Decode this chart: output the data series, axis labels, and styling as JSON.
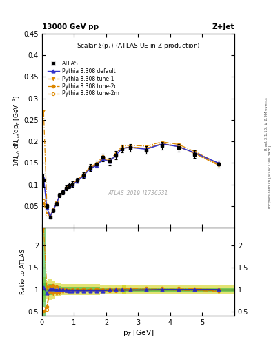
{
  "title_top": "13000 GeV pp",
  "title_right": "Z+Jet",
  "plot_title": "Scalar $\\Sigma$(p$_T$) (ATLAS UE in Z production)",
  "watermark": "ATLAS_2019_I1736531",
  "ylabel_main": "1/N$_{ch}$ dN$_{ch}$/dp$_T$ [GeV$^{-1}$]",
  "ylabel_ratio": "Ratio to ATLAS",
  "xlabel": "p$_T$ [GeV]",
  "right_label": "Rivet 3.1.10, ≥ 2.9M events",
  "arxiv_label": "[arXiv:1306.3436]",
  "mcplots_label": "mcplots.cern.ch",
  "ylim_main": [
    0.0,
    0.45
  ],
  "ylim_ratio": [
    0.4,
    2.4
  ],
  "xlim": [
    0.0,
    6.0
  ],
  "atlas_x": [
    0.05,
    0.15,
    0.25,
    0.35,
    0.45,
    0.55,
    0.65,
    0.75,
    0.85,
    0.95,
    1.1,
    1.3,
    1.5,
    1.7,
    1.9,
    2.1,
    2.3,
    2.5,
    2.75,
    3.25,
    3.75,
    4.25,
    4.75,
    5.5
  ],
  "atlas_y": [
    0.11,
    0.05,
    0.025,
    0.04,
    0.055,
    0.075,
    0.082,
    0.092,
    0.098,
    0.101,
    0.11,
    0.122,
    0.14,
    0.148,
    0.163,
    0.153,
    0.168,
    0.183,
    0.185,
    0.18,
    0.19,
    0.185,
    0.17,
    0.148
  ],
  "atlas_yerr": [
    0.015,
    0.005,
    0.003,
    0.004,
    0.004,
    0.005,
    0.005,
    0.006,
    0.006,
    0.006,
    0.006,
    0.007,
    0.008,
    0.008,
    0.009,
    0.008,
    0.009,
    0.009,
    0.009,
    0.009,
    0.009,
    0.009,
    0.009,
    0.008
  ],
  "pythia_default_x": [
    0.05,
    0.15,
    0.25,
    0.35,
    0.45,
    0.55,
    0.65,
    0.75,
    0.85,
    0.95,
    1.1,
    1.3,
    1.5,
    1.7,
    1.9,
    2.1,
    2.3,
    2.5,
    2.75,
    3.25,
    3.75,
    4.25,
    4.75,
    5.5
  ],
  "pythia_default_y": [
    0.115,
    0.046,
    0.026,
    0.041,
    0.056,
    0.075,
    0.082,
    0.091,
    0.096,
    0.099,
    0.108,
    0.121,
    0.137,
    0.144,
    0.159,
    0.153,
    0.168,
    0.184,
    0.186,
    0.182,
    0.194,
    0.188,
    0.174,
    0.15
  ],
  "tune1_x": [
    0.05,
    0.15,
    0.25,
    0.35,
    0.45,
    0.55,
    0.65,
    0.75,
    0.85,
    0.95,
    1.1,
    1.3,
    1.5,
    1.7,
    1.9,
    2.1,
    2.3,
    2.5,
    2.75,
    3.25,
    3.75,
    4.25,
    4.75,
    5.5
  ],
  "tune1_y": [
    0.27,
    0.052,
    0.026,
    0.04,
    0.056,
    0.074,
    0.081,
    0.091,
    0.097,
    0.1,
    0.11,
    0.122,
    0.139,
    0.146,
    0.162,
    0.152,
    0.167,
    0.184,
    0.187,
    0.184,
    0.195,
    0.188,
    0.172,
    0.145
  ],
  "tune2c_x": [
    0.05,
    0.15,
    0.25,
    0.35,
    0.45,
    0.55,
    0.65,
    0.75,
    0.85,
    0.95,
    1.1,
    1.3,
    1.5,
    1.7,
    1.9,
    2.1,
    2.3,
    2.5,
    2.75,
    3.25,
    3.75,
    4.25,
    4.75,
    5.5
  ],
  "tune2c_y": [
    0.057,
    0.033,
    0.028,
    0.043,
    0.059,
    0.077,
    0.084,
    0.093,
    0.098,
    0.101,
    0.111,
    0.124,
    0.141,
    0.149,
    0.165,
    0.156,
    0.172,
    0.189,
    0.191,
    0.189,
    0.199,
    0.193,
    0.177,
    0.149
  ],
  "tune2m_x": [
    0.05,
    0.15,
    0.25,
    0.35,
    0.45,
    0.55,
    0.65,
    0.75,
    0.85,
    0.95,
    1.1,
    1.3,
    1.5,
    1.7,
    1.9,
    2.1,
    2.3,
    2.5,
    2.75,
    3.25,
    3.75,
    4.25,
    4.75,
    5.5
  ],
  "tune2m_y": [
    0.063,
    0.031,
    0.027,
    0.042,
    0.058,
    0.076,
    0.082,
    0.091,
    0.097,
    0.1,
    0.11,
    0.122,
    0.139,
    0.146,
    0.162,
    0.153,
    0.168,
    0.185,
    0.187,
    0.184,
    0.195,
    0.189,
    0.173,
    0.147
  ],
  "color_atlas": "#000000",
  "color_default": "#3333cc",
  "color_tunes": "#dd8800",
  "ratio_default_y": [
    1.05,
    0.92,
    1.02,
    1.01,
    1.0,
    0.99,
    0.99,
    0.98,
    0.97,
    0.97,
    0.97,
    0.97,
    0.97,
    0.97,
    0.97,
    0.99,
    0.99,
    0.99,
    0.99,
    0.99,
    1.0,
    1.0,
    1.0,
    1.0
  ],
  "ratio_tune1_y": [
    2.4,
    1.04,
    0.93,
    0.9,
    0.91,
    0.92,
    0.95,
    0.96,
    0.97,
    0.97,
    0.97,
    0.97,
    0.97,
    0.97,
    0.97,
    0.97,
    0.97,
    0.98,
    0.99,
    1.0,
    1.0,
    0.98,
    0.98,
    0.95
  ],
  "ratio_tune2c_y": [
    0.52,
    0.61,
    1.07,
    1.09,
    1.06,
    1.02,
    1.01,
    0.99,
    0.98,
    0.99,
    0.99,
    1.01,
    1.0,
    1.01,
    1.0,
    1.01,
    1.01,
    1.02,
    1.02,
    1.03,
    1.03,
    1.03,
    1.02,
    1.0
  ],
  "ratio_tune2m_y": [
    0.57,
    0.55,
    1.02,
    1.01,
    1.01,
    0.99,
    0.99,
    0.97,
    0.97,
    0.97,
    0.97,
    0.97,
    0.97,
    0.97,
    0.97,
    0.97,
    0.97,
    0.98,
    0.98,
    0.99,
    0.99,
    0.99,
    0.99,
    0.97
  ],
  "atlas_stat_ratio": [
    0.14,
    0.1,
    0.12,
    0.1,
    0.08,
    0.07,
    0.06,
    0.06,
    0.06,
    0.06,
    0.06,
    0.06,
    0.06,
    0.06,
    0.05,
    0.05,
    0.05,
    0.05,
    0.05,
    0.05,
    0.05,
    0.05,
    0.05,
    0.05
  ]
}
